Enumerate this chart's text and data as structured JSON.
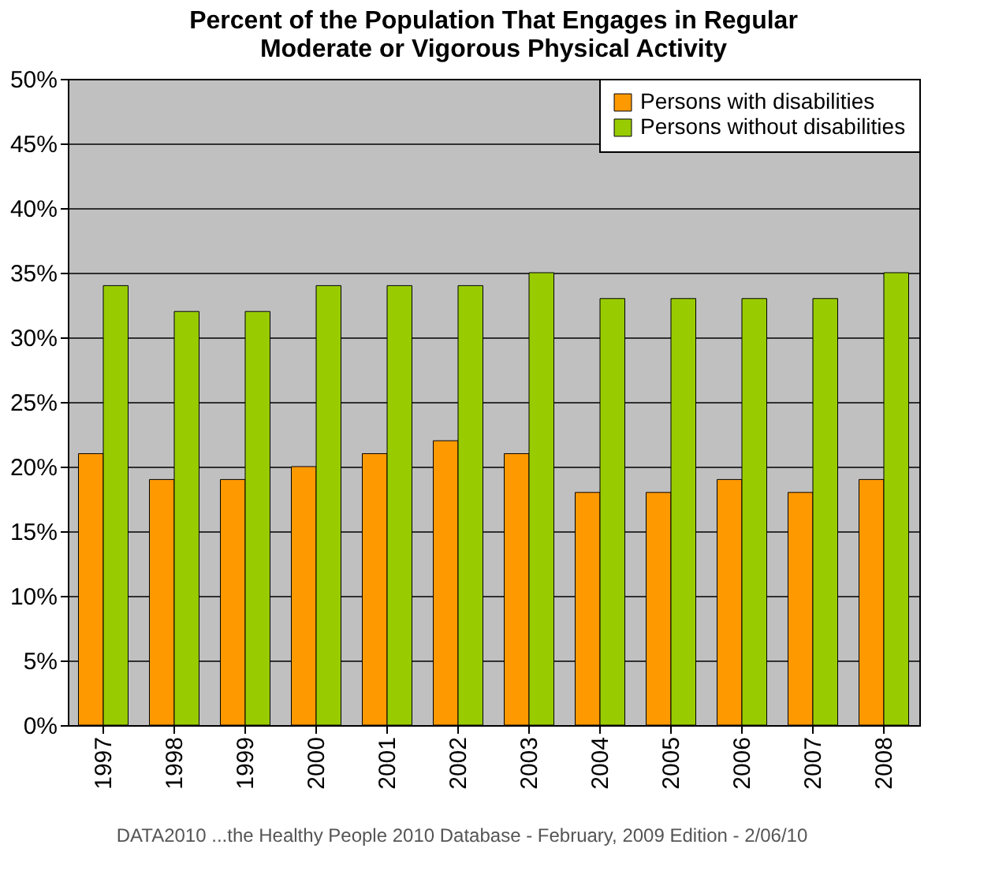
{
  "chart_data": {
    "type": "bar",
    "title": "Percent of the Population That Engages in Regular\nModerate or Vigorous Physical Activity",
    "categories": [
      "1997",
      "1998",
      "1999",
      "2000",
      "2001",
      "2002",
      "2003",
      "2004",
      "2005",
      "2006",
      "2007",
      "2008"
    ],
    "series": [
      {
        "name": "Persons with disabilities",
        "color": "#ff9900",
        "values": [
          21,
          19,
          19,
          20,
          21,
          22,
          21,
          18,
          18,
          19,
          18,
          19
        ]
      },
      {
        "name": "Persons without disabilities",
        "color": "#99cc00",
        "values": [
          34,
          32,
          32,
          34,
          34,
          34,
          35,
          33,
          33,
          33,
          33,
          35
        ]
      }
    ],
    "ylim": [
      0,
      50
    ],
    "yticks": [
      {
        "value": 0,
        "label": "0%"
      },
      {
        "value": 5,
        "label": "5%"
      },
      {
        "value": 10,
        "label": "10%"
      },
      {
        "value": 15,
        "label": "15%"
      },
      {
        "value": 20,
        "label": "20%"
      },
      {
        "value": 25,
        "label": "25%"
      },
      {
        "value": 30,
        "label": "30%"
      },
      {
        "value": 35,
        "label": "35%"
      },
      {
        "value": 40,
        "label": "40%"
      },
      {
        "value": 45,
        "label": "45%"
      },
      {
        "value": 50,
        "label": "50%"
      }
    ],
    "grid": "y",
    "legend": "top right",
    "annotations": [
      "DATA2010 ...the Healthy People 2010 Database - February, 2009 Edition - 2/06/10"
    ]
  }
}
